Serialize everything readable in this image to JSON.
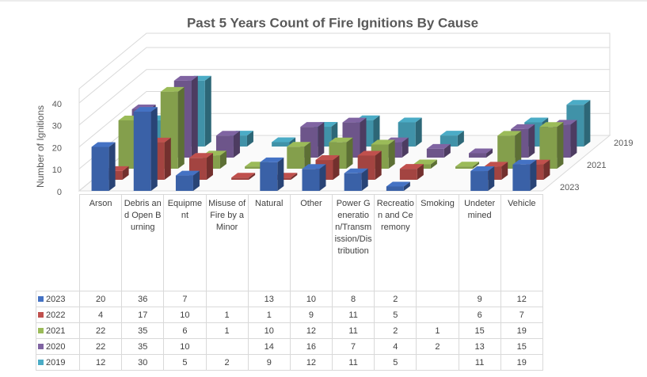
{
  "chart_data": {
    "type": "bar3d",
    "title": "Past 5 Years Count of Fire Ignitions By Cause",
    "y_label": "Number of Ignitions",
    "categories": [
      "Arson",
      "Debris and Open Burning",
      "Equipment",
      "Misuse of Fire by a Minor",
      "Natural",
      "Other",
      "Power Generation/Transmission/Distribution",
      "Recreation and Ceremony",
      "Smoking",
      "Undetermined",
      "Vehicle"
    ],
    "series": [
      {
        "name": "2023",
        "color": "#4472c4",
        "values": [
          20,
          36,
          7,
          null,
          13,
          10,
          8,
          2,
          null,
          9,
          12
        ]
      },
      {
        "name": "2022",
        "color": "#c0504d",
        "values": [
          4,
          17,
          10,
          1,
          1,
          9,
          11,
          5,
          null,
          6,
          7
        ]
      },
      {
        "name": "2021",
        "color": "#9bbb59",
        "values": [
          22,
          35,
          6,
          1,
          10,
          12,
          11,
          2,
          1,
          15,
          19
        ]
      },
      {
        "name": "2020",
        "color": "#8064a2",
        "values": [
          22,
          35,
          10,
          null,
          14,
          16,
          7,
          4,
          2,
          13,
          15
        ]
      },
      {
        "name": "2019",
        "color": "#4bacc6",
        "values": [
          12,
          30,
          5,
          2,
          9,
          12,
          11,
          5,
          null,
          11,
          19
        ]
      }
    ],
    "ylim": [
      0,
      40
    ],
    "yticks": [
      0,
      10,
      20,
      30,
      40
    ],
    "grid": true
  }
}
